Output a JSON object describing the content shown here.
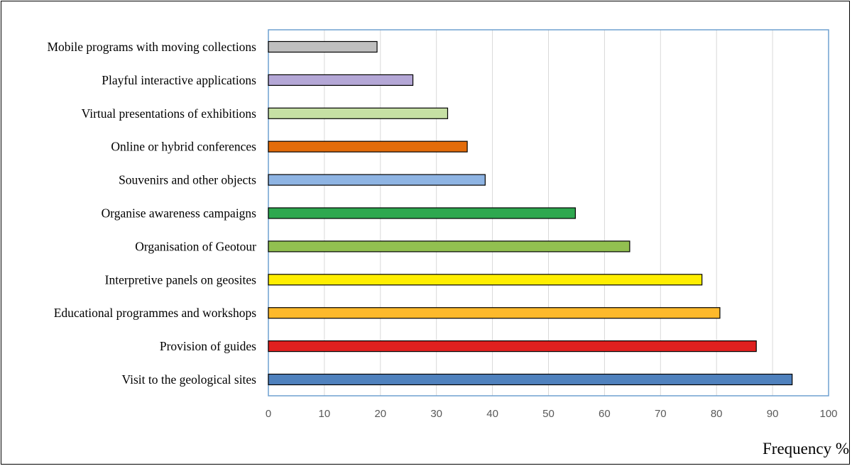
{
  "chart_data": {
    "type": "bar",
    "orientation": "horizontal",
    "title": "",
    "xlabel": "Frequency %",
    "ylabel": "",
    "xlim": [
      0,
      100
    ],
    "xticks": [
      0,
      10,
      20,
      30,
      40,
      50,
      60,
      70,
      80,
      90,
      100
    ],
    "grid": "vertical",
    "legend": "none",
    "categories": [
      "Mobile programs with moving collections",
      "Playful interactive applications",
      "Virtual presentations of exhibitions",
      "Online or hybrid conferences",
      "Souvenirs and other objects",
      "Organise awareness campaigns",
      "Organisation of Geotour",
      "Interpretive panels on geosites",
      "Educational programmes and workshops",
      "Provision of guides",
      "Visit to the geological sites"
    ],
    "values": [
      19.4,
      25.8,
      32.0,
      35.5,
      38.7,
      54.8,
      64.5,
      77.4,
      80.6,
      87.1,
      93.5
    ],
    "colors": [
      "#bfbfbf",
      "#b4a7d6",
      "#c6e0a4",
      "#e36c0a",
      "#8eb4e3",
      "#2ea84f",
      "#92c050",
      "#ffee00",
      "#fdb92b",
      "#e0201f",
      "#4f81bd"
    ]
  }
}
